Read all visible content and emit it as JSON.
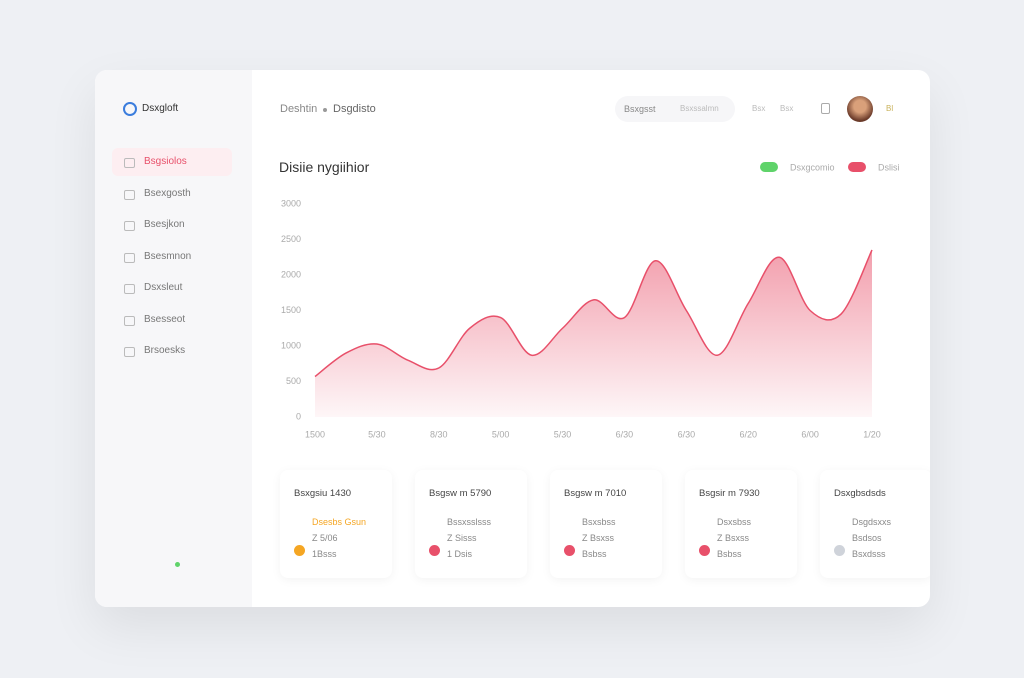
{
  "brand": "Dsxgloft",
  "sidebar": {
    "items": [
      "Bsgsiolos",
      "Bsexgosth",
      "Bsesjkon",
      "Bsesmnon",
      "Dsxsleut",
      "Bsesseot",
      "Brsoesks"
    ],
    "active": 0
  },
  "header": {
    "breadcrumb": [
      "Deshtin",
      "Dsgdisto"
    ],
    "search": "Bsxgsst",
    "links": [
      "Bsxssalmn",
      "Bsx",
      "Bsx"
    ],
    "badge": "Bl"
  },
  "chart_data": {
    "type": "area",
    "title": "Disiie nygiihior",
    "categories": [
      "1500",
      null,
      "5/30",
      null,
      "8/30",
      null,
      "5/00",
      null,
      "5/30",
      null,
      "6/30",
      null,
      "6/30",
      null,
      "6/20",
      null,
      "6/00",
      null,
      "1/20"
    ],
    "series": [
      {
        "name": "Dslisi",
        "color": "#e8506a",
        "values": [
          570,
          900,
          1028,
          800,
          690,
          1250,
          1400,
          870,
          1250,
          1650,
          1400,
          2200,
          1500,
          870,
          1600,
          2250,
          1500,
          1450,
          2352
        ]
      }
    ],
    "legend": [
      {
        "name": "Dsxgcomio",
        "color": "#5fd36a"
      },
      {
        "name": "Dslisi",
        "color": "#e8506a"
      }
    ],
    "ylim": [
      0,
      3000
    ],
    "yticks": [
      0,
      500,
      1000,
      1500,
      2000,
      2500,
      3000
    ]
  },
  "cards": [
    {
      "title": "Bsxgsiu 1430",
      "items": [
        "Dsesbs Gsun",
        "Z 5/06",
        "1Bsss"
      ],
      "color": "#f5a623"
    },
    {
      "title": "Bsgsw m 5790",
      "items": [
        "Bssxsslsss",
        "Z Sisss",
        "1 Dsis"
      ],
      "color": "#e8506a"
    },
    {
      "title": "Bsgsw m 7010",
      "items": [
        "Bsxsbss",
        "Z Bsxss",
        "Bsbss"
      ],
      "color": "#e8506a"
    },
    {
      "title": "Bsgsir m 7930",
      "items": [
        "Dsxsbss",
        "Z Bsxss",
        "Bsbss"
      ],
      "color": "#e8506a"
    },
    {
      "title": "Dsxgbsdsds",
      "items": [
        "Dsgdsxxs",
        "Bsdsos",
        "Bsxdsss"
      ],
      "color": "#cfd3da"
    }
  ]
}
